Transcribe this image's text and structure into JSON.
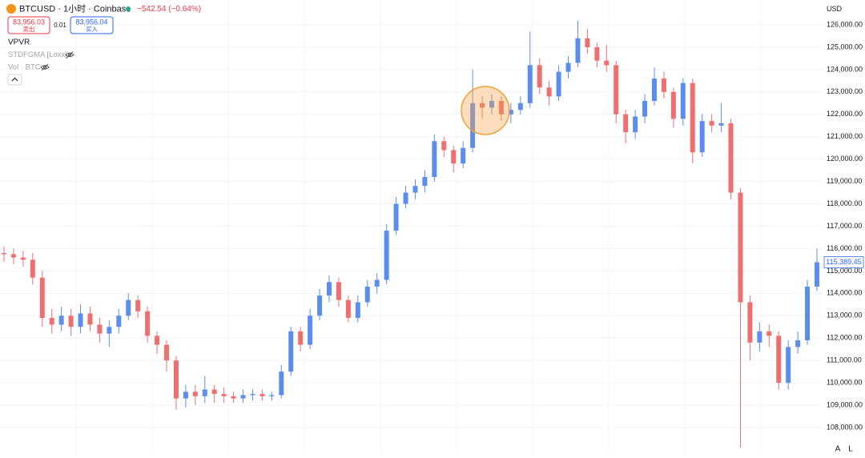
{
  "header": {
    "symbol": "BTCUSD · 1小时 · Coinbase",
    "change": "−542.54 (−0.64%)",
    "sell_price": "83,956.03",
    "sell_label": "卖出",
    "spread": "0.01",
    "buy_price": "83,956.04",
    "buy_label": "买入"
  },
  "indicators": [
    "VPVR",
    "STDFGMA [Loxx]",
    "Vol · BTC"
  ],
  "axis_currency": "USD",
  "corner_buttons": [
    "A",
    "L"
  ],
  "chart_data": {
    "type": "candlestick",
    "up_color": "#5b8def",
    "down_color": "#ef6f6f",
    "grid": true,
    "ylim": [
      106890,
      127110
    ],
    "yticks": [
      {
        "value": 108000,
        "label": "108,000.00"
      },
      {
        "value": 109000,
        "label": "109,000.00"
      },
      {
        "value": 110000,
        "label": "110,000.00"
      },
      {
        "value": 111000,
        "label": "111,000.00"
      },
      {
        "value": 112000,
        "label": "112,000.00"
      },
      {
        "value": 113000,
        "label": "113,000.00"
      },
      {
        "value": 114000,
        "label": "114,000.00"
      },
      {
        "value": 115000,
        "label": "115,000.00"
      },
      {
        "value": 116000,
        "label": "116,000.00"
      },
      {
        "value": 117000,
        "label": "117,000.00"
      },
      {
        "value": 118000,
        "label": "118,000.00"
      },
      {
        "value": 119000,
        "label": "119,000.00"
      },
      {
        "value": 120000,
        "label": "120,000.00"
      },
      {
        "value": 121000,
        "label": "121,000.00"
      },
      {
        "value": 122000,
        "label": "122,000.00"
      },
      {
        "value": 123000,
        "label": "123,000.00"
      },
      {
        "value": 124000,
        "label": "124,000.00"
      },
      {
        "value": 125000,
        "label": "125,000.00"
      },
      {
        "value": 126000,
        "label": "126,000.00"
      }
    ],
    "open": [
      115800,
      115750,
      115600,
      115500,
      114700,
      112900,
      112600,
      113000,
      112500,
      113100,
      112600,
      112200,
      112500,
      113000,
      113700,
      113200,
      112100,
      111700,
      111000,
      109300,
      109600,
      109400,
      109700,
      109500,
      109400,
      109300,
      109450,
      109500,
      109400,
      109450,
      110500,
      112300,
      111700,
      113000,
      113900,
      114500,
      113700,
      112900,
      113600,
      114300,
      114600,
      116800,
      118000,
      118500,
      118800,
      119200,
      120800,
      120400,
      119800,
      120500,
      122500,
      122300,
      122600,
      122000,
      122200,
      122500,
      124200,
      123200,
      122800,
      123900,
      124300,
      125400,
      125000,
      124400,
      124200,
      122000,
      121200,
      121900,
      122600,
      123600,
      123000,
      121800,
      123400,
      120300,
      121700,
      121500,
      121600,
      118500,
      113600,
      111800,
      112300,
      112100,
      110000,
      111600,
      111900,
      114300
    ],
    "high": [
      116100,
      116000,
      115900,
      115800,
      115000,
      113300,
      113400,
      113300,
      113500,
      113400,
      112900,
      112800,
      113300,
      114000,
      113900,
      113400,
      112300,
      111900,
      111200,
      109900,
      109900,
      110300,
      109900,
      109800,
      109600,
      109700,
      109700,
      109700,
      109600,
      110800,
      112500,
      112500,
      113300,
      114200,
      114800,
      114700,
      113900,
      113900,
      114600,
      114900,
      117100,
      118300,
      118800,
      119100,
      119500,
      121100,
      121000,
      120600,
      120800,
      124000,
      122800,
      122900,
      122800,
      122500,
      122800,
      125700,
      124500,
      123500,
      124200,
      124600,
      126200,
      125800,
      125200,
      125100,
      124400,
      122200,
      122200,
      122900,
      124100,
      123900,
      123200,
      123600,
      123600,
      122000,
      122000,
      122500,
      121800,
      118700,
      113900,
      112700,
      112600,
      112300,
      111900,
      112300,
      114600,
      116000
    ],
    "low": [
      115400,
      115300,
      115200,
      114400,
      112500,
      112200,
      112300,
      112100,
      112200,
      112300,
      111800,
      111600,
      112200,
      112800,
      112900,
      111800,
      111300,
      110500,
      108800,
      108900,
      109000,
      109100,
      109100,
      109100,
      109100,
      109100,
      109200,
      109200,
      109200,
      109300,
      110300,
      111400,
      111500,
      112800,
      113600,
      113400,
      112700,
      112700,
      113400,
      114000,
      114400,
      116600,
      117800,
      118200,
      118500,
      119000,
      120100,
      119400,
      119600,
      120300,
      121800,
      122000,
      121700,
      121600,
      122000,
      122300,
      122900,
      122400,
      122600,
      123600,
      124100,
      124700,
      124100,
      123900,
      121600,
      120700,
      120900,
      121600,
      122400,
      122700,
      121400,
      121500,
      119800,
      120100,
      121200,
      121200,
      118200,
      107100,
      111000,
      111400,
      111600,
      109700,
      109700,
      111300,
      111700,
      114100
    ],
    "close": [
      115750,
      115600,
      115500,
      114700,
      112900,
      112600,
      113000,
      112500,
      113100,
      112600,
      112200,
      112500,
      113000,
      113700,
      113200,
      112100,
      111700,
      111000,
      109300,
      109600,
      109400,
      109700,
      109500,
      109400,
      109300,
      109450,
      109500,
      109400,
      109450,
      110500,
      112300,
      111700,
      113000,
      113900,
      114500,
      113700,
      112900,
      113600,
      114300,
      114600,
      116800,
      118000,
      118500,
      118800,
      119200,
      120800,
      120400,
      119800,
      120500,
      122500,
      122300,
      122600,
      122000,
      122200,
      122500,
      124200,
      123200,
      122800,
      123900,
      124300,
      125400,
      125000,
      124400,
      124200,
      122000,
      121200,
      121900,
      122600,
      123600,
      123000,
      121800,
      123400,
      120300,
      121700,
      121500,
      121600,
      118500,
      113600,
      111800,
      112300,
      112100,
      110000,
      111600,
      111900,
      114300,
      115389.45
    ],
    "current_price": {
      "value": 115389.45,
      "label": "115,389.45"
    }
  }
}
